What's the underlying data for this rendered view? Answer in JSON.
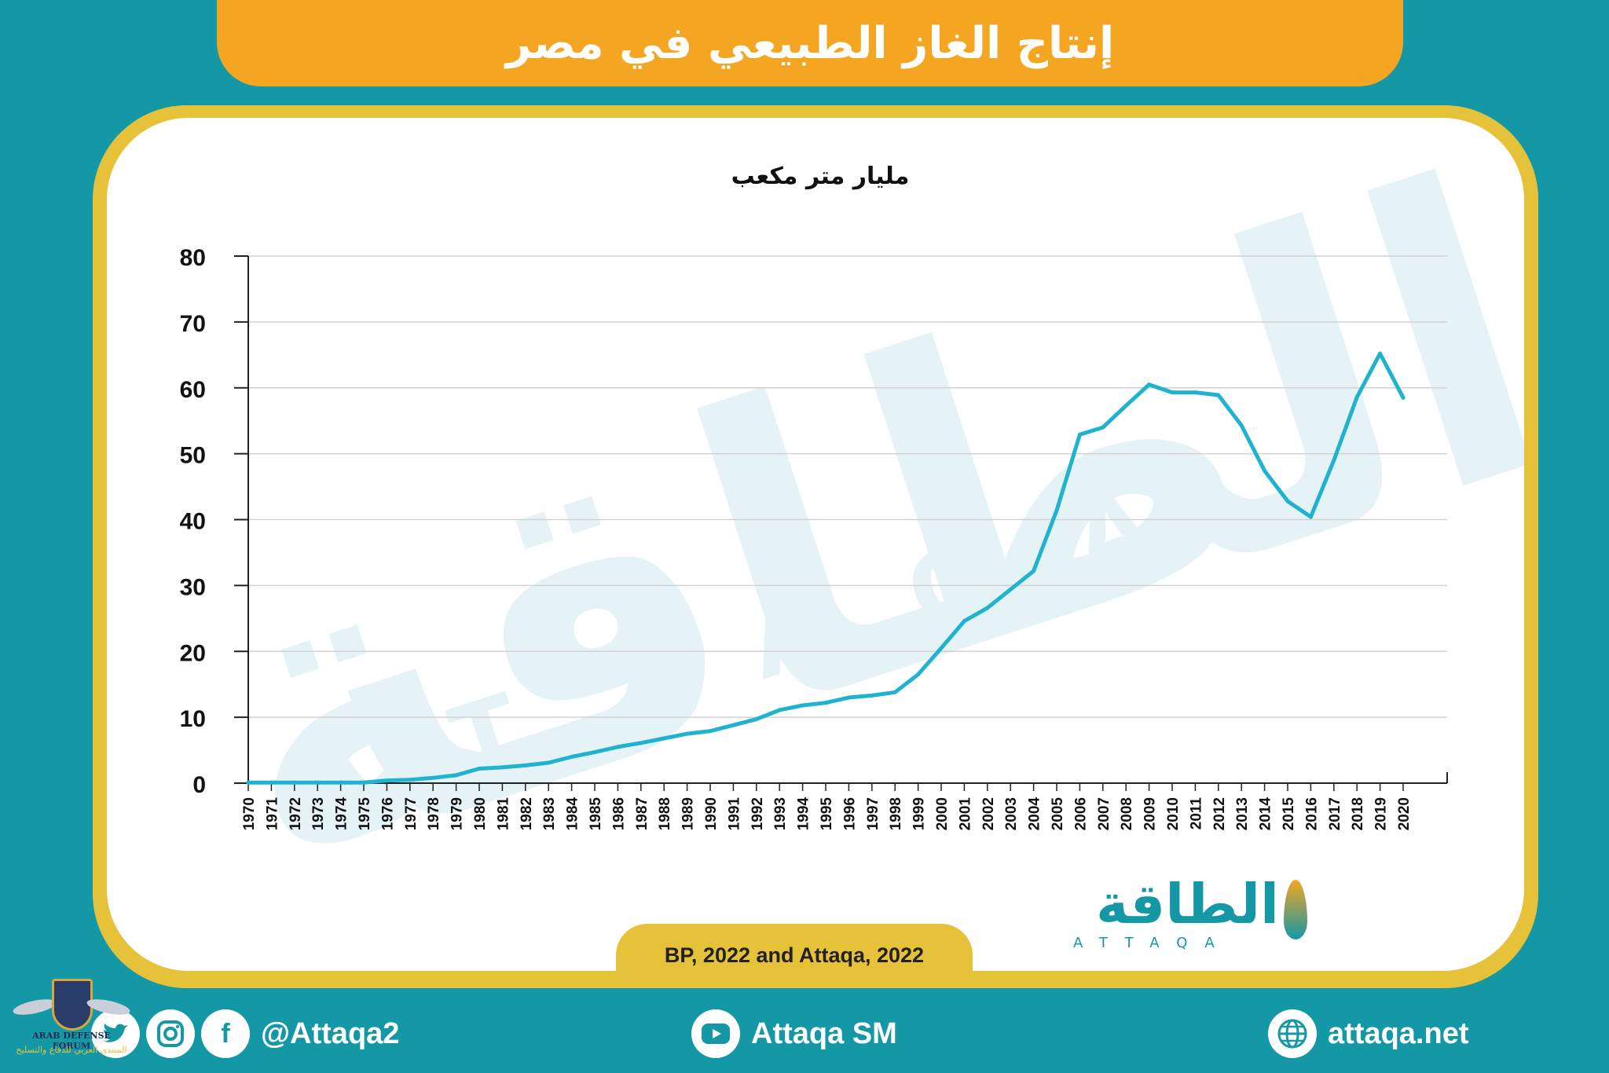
{
  "header": {
    "title": "إنتاج الغاز الطبيعي في مصر"
  },
  "chart_data": {
    "type": "line",
    "unit_label": "مليار متر مكعب",
    "xlabel": "",
    "ylabel": "",
    "ylim": [
      0,
      80
    ],
    "yticks": [
      0,
      10,
      20,
      30,
      40,
      50,
      60,
      70,
      80
    ],
    "grid": true,
    "line_color": "#1fb3cf",
    "categories": [
      "1970",
      "1971",
      "1972",
      "1973",
      "1974",
      "1975",
      "1976",
      "1977",
      "1978",
      "1979",
      "1980",
      "1981",
      "1982",
      "1983",
      "1984",
      "1985",
      "1986",
      "1987",
      "1988",
      "1989",
      "1990",
      "1991",
      "1992",
      "1993",
      "1994",
      "1995",
      "1996",
      "1997",
      "1998",
      "1999",
      "2000",
      "2001",
      "2002",
      "2003",
      "2004",
      "2005",
      "2006",
      "2007",
      "2008",
      "2009",
      "2010",
      "2011",
      "2012",
      "2013",
      "2014",
      "2015",
      "2016",
      "2017",
      "2018",
      "2019",
      "2020"
    ],
    "series": [
      {
        "values": [
          0.1,
          0.1,
          0.1,
          0.1,
          0.1,
          0.1,
          0.4,
          0.5,
          0.8,
          1.2,
          2.2,
          2.4,
          2.7,
          3.1,
          4.0,
          4.7,
          5.5,
          6.1,
          6.8,
          7.5,
          7.9,
          8.8,
          9.7,
          11.1,
          11.8,
          12.2,
          13.0,
          13.3,
          13.8,
          16.5,
          20.5,
          24.6,
          26.6,
          29.4,
          32.2,
          41.4,
          52.9,
          54.0,
          57.3,
          60.5,
          59.3,
          59.3,
          58.9,
          54.3,
          47.4,
          42.8,
          40.4,
          49.0,
          58.6,
          65.2,
          58.5
        ]
      }
    ]
  },
  "source": {
    "text": "BP, 2022 and Attaqa, 2022"
  },
  "logo": {
    "ar": "الطاقة",
    "en": "ATTAQA"
  },
  "watermark": {
    "ar": "الطاقة",
    "en": "ATTAQA"
  },
  "footer": {
    "social_handle": "@Attaqa2",
    "youtube": "Attaqa SM",
    "website": "attaqa.net",
    "icons": [
      "facebook-icon",
      "instagram-icon",
      "twitter-icon",
      "youtube-icon",
      "globe-icon"
    ]
  },
  "forum_badge": {
    "en": "ARAB DEFENSE FORUM",
    "ar": "المنتدى العربي للدفاع والتسليح"
  }
}
